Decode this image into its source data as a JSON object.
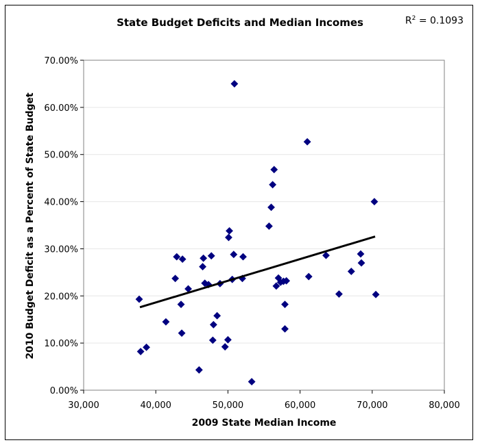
{
  "chart_data": {
    "type": "scatter",
    "title": "State Budget Deficits and Median Incomes",
    "annotation": {
      "label": "R",
      "sup": "2",
      "text": " = 0.1093"
    },
    "xlabel": "2009 State Median Income",
    "ylabel": "2010 Budget Deficit as a Percent of State Budget",
    "xlim": [
      30000,
      80000
    ],
    "ylim": [
      0,
      70
    ],
    "xticks": [
      "30,000",
      "40,000",
      "50,000",
      "60,000",
      "70,000",
      "80,000"
    ],
    "yticks": [
      "0.00%",
      "10.00%",
      "20.00%",
      "30.00%",
      "40.00%",
      "50.00%",
      "60.00%",
      "70.00%"
    ],
    "grid": true,
    "marker_color": "#000080",
    "trendline": {
      "x": [
        37800,
        70400
      ],
      "y": [
        17.6,
        32.6
      ]
    },
    "points": [
      [
        37700,
        19.3
      ],
      [
        37900,
        8.2
      ],
      [
        38700,
        9.1
      ],
      [
        41400,
        14.5
      ],
      [
        42700,
        23.7
      ],
      [
        42900,
        28.3
      ],
      [
        43500,
        18.2
      ],
      [
        43600,
        12.1
      ],
      [
        43700,
        27.8
      ],
      [
        44500,
        21.5
      ],
      [
        46000,
        4.3
      ],
      [
        46500,
        26.2
      ],
      [
        46600,
        28.0
      ],
      [
        46800,
        22.7
      ],
      [
        47300,
        22.4
      ],
      [
        47700,
        28.5
      ],
      [
        47900,
        10.6
      ],
      [
        48000,
        13.9
      ],
      [
        48500,
        15.8
      ],
      [
        48900,
        22.6
      ],
      [
        49600,
        9.2
      ],
      [
        50000,
        10.7
      ],
      [
        50100,
        32.4
      ],
      [
        50200,
        33.8
      ],
      [
        50600,
        23.5
      ],
      [
        50800,
        28.8
      ],
      [
        50900,
        65.0
      ],
      [
        52000,
        23.7
      ],
      [
        52100,
        28.3
      ],
      [
        53300,
        1.8
      ],
      [
        55700,
        34.8
      ],
      [
        56000,
        38.8
      ],
      [
        56200,
        43.6
      ],
      [
        56400,
        46.8
      ],
      [
        56700,
        22.1
      ],
      [
        57000,
        23.8
      ],
      [
        57300,
        22.9
      ],
      [
        57700,
        23.1
      ],
      [
        57900,
        18.2
      ],
      [
        57900,
        13.0
      ],
      [
        58100,
        23.2
      ],
      [
        61000,
        52.7
      ],
      [
        61200,
        24.1
      ],
      [
        63600,
        28.6
      ],
      [
        65400,
        20.4
      ],
      [
        67100,
        25.2
      ],
      [
        68400,
        28.9
      ],
      [
        68500,
        27.0
      ],
      [
        70300,
        40.0
      ],
      [
        70500,
        20.3
      ]
    ]
  }
}
